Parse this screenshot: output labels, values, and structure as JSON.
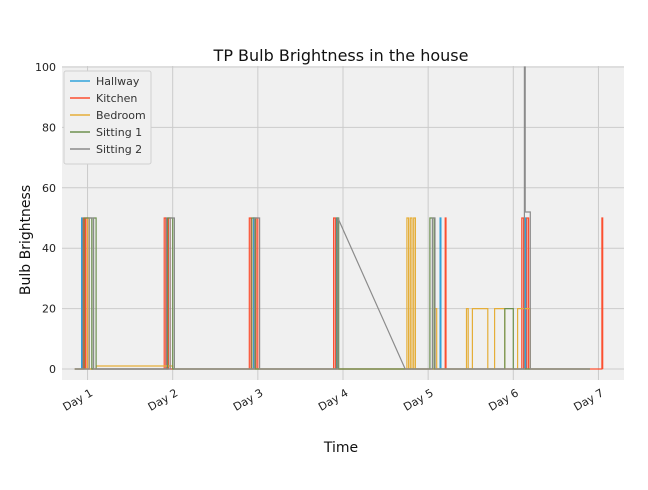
{
  "chart_data": {
    "type": "line",
    "title": "TP Bulb Brightness in the house",
    "xlabel": "Time",
    "ylabel": "Bulb Brightness",
    "ylim": [
      0,
      100
    ],
    "xlim": [
      0.7,
      7.3
    ],
    "grid": true,
    "legend_position": "top-left",
    "colors": {
      "background": "#f0f0f0",
      "grid": "#cbcbcb"
    },
    "x_ticks": [
      {
        "value": 1,
        "label": "Day 1"
      },
      {
        "value": 2,
        "label": "Day 2"
      },
      {
        "value": 3,
        "label": "Day 3"
      },
      {
        "value": 4,
        "label": "Day 4"
      },
      {
        "value": 5,
        "label": "Day 5"
      },
      {
        "value": 6,
        "label": "Day 6"
      },
      {
        "value": 7,
        "label": "Day 7"
      }
    ],
    "y_ticks": [
      0,
      20,
      40,
      60,
      80,
      100
    ],
    "series": [
      {
        "name": "Hallway",
        "color": "#30a2da",
        "points": [
          [
            0.85,
            0
          ],
          [
            0.93,
            0
          ],
          [
            0.93,
            50
          ],
          [
            0.94,
            50
          ],
          [
            0.94,
            0
          ],
          [
            1.92,
            0
          ],
          [
            1.92,
            50
          ],
          [
            1.93,
            50
          ],
          [
            1.93,
            0
          ],
          [
            2.95,
            0
          ],
          [
            2.95,
            50
          ],
          [
            2.96,
            50
          ],
          [
            2.96,
            0
          ],
          [
            3.92,
            0
          ],
          [
            3.92,
            50
          ],
          [
            3.93,
            50
          ],
          [
            3.93,
            0
          ],
          [
            5.14,
            0
          ],
          [
            5.14,
            50
          ],
          [
            5.15,
            50
          ],
          [
            5.15,
            0
          ],
          [
            6.14,
            0
          ],
          [
            6.14,
            50
          ],
          [
            6.15,
            50
          ],
          [
            6.15,
            0
          ],
          [
            6.9,
            0
          ]
        ]
      },
      {
        "name": "Kitchen",
        "color": "#fc4f30",
        "points": [
          [
            0.85,
            0
          ],
          [
            0.95,
            0
          ],
          [
            0.95,
            50
          ],
          [
            0.97,
            50
          ],
          [
            0.97,
            0
          ],
          [
            0.98,
            0
          ],
          [
            0.98,
            50
          ],
          [
            1.0,
            50
          ],
          [
            1.0,
            0
          ],
          [
            1.9,
            0
          ],
          [
            1.9,
            50
          ],
          [
            1.92,
            50
          ],
          [
            1.92,
            0
          ],
          [
            1.95,
            0
          ],
          [
            1.95,
            50
          ],
          [
            1.97,
            50
          ],
          [
            1.97,
            0
          ],
          [
            2.9,
            0
          ],
          [
            2.9,
            50
          ],
          [
            2.92,
            50
          ],
          [
            2.92,
            0
          ],
          [
            2.98,
            0
          ],
          [
            2.98,
            50
          ],
          [
            3.0,
            50
          ],
          [
            3.0,
            0
          ],
          [
            3.89,
            0
          ],
          [
            3.89,
            50
          ],
          [
            3.91,
            50
          ],
          [
            3.91,
            0
          ],
          [
            5.2,
            0
          ],
          [
            5.2,
            50
          ],
          [
            5.21,
            50
          ],
          [
            5.21,
            0
          ],
          [
            6.1,
            0
          ],
          [
            6.1,
            50
          ],
          [
            6.12,
            50
          ],
          [
            6.12,
            0
          ],
          [
            6.16,
            0
          ],
          [
            6.16,
            50
          ],
          [
            6.18,
            50
          ],
          [
            6.18,
            0
          ],
          [
            7.04,
            0
          ],
          [
            7.04,
            50
          ],
          [
            7.05,
            50
          ],
          [
            7.05,
            0
          ]
        ]
      },
      {
        "name": "Bedroom",
        "color": "#e5ae38",
        "points": [
          [
            0.85,
            0
          ],
          [
            1.0,
            0
          ],
          [
            1.0,
            50
          ],
          [
            1.02,
            50
          ],
          [
            1.02,
            0
          ],
          [
            1.1,
            0
          ],
          [
            1.1,
            1
          ],
          [
            2.0,
            1
          ],
          [
            2.0,
            0
          ],
          [
            2.05,
            0
          ],
          [
            4.75,
            0
          ],
          [
            4.75,
            50
          ],
          [
            4.77,
            50
          ],
          [
            4.77,
            0
          ],
          [
            4.79,
            0
          ],
          [
            4.79,
            50
          ],
          [
            4.81,
            50
          ],
          [
            4.81,
            0
          ],
          [
            4.83,
            0
          ],
          [
            4.83,
            50
          ],
          [
            4.85,
            50
          ],
          [
            4.85,
            0
          ],
          [
            5.08,
            0
          ],
          [
            5.08,
            20
          ],
          [
            5.1,
            20
          ],
          [
            5.1,
            0
          ],
          [
            5.45,
            0
          ],
          [
            5.45,
            20
          ],
          [
            5.47,
            20
          ],
          [
            5.47,
            0
          ],
          [
            5.52,
            0
          ],
          [
            5.52,
            20
          ],
          [
            5.7,
            20
          ],
          [
            5.7,
            0
          ],
          [
            5.78,
            0
          ],
          [
            5.78,
            20
          ],
          [
            5.9,
            20
          ],
          [
            5.9,
            0
          ],
          [
            6.05,
            0
          ],
          [
            6.05,
            20
          ],
          [
            6.2,
            20
          ],
          [
            6.2,
            0
          ],
          [
            6.9,
            0
          ]
        ]
      },
      {
        "name": "Sitting 1",
        "color": "#6d904f",
        "points": [
          [
            0.85,
            0
          ],
          [
            0.96,
            0
          ],
          [
            0.96,
            50
          ],
          [
            1.05,
            50
          ],
          [
            1.05,
            0
          ],
          [
            1.07,
            0
          ],
          [
            1.07,
            50
          ],
          [
            1.1,
            50
          ],
          [
            1.1,
            0
          ],
          [
            1.94,
            0
          ],
          [
            1.94,
            50
          ],
          [
            2.0,
            50
          ],
          [
            2.0,
            0
          ],
          [
            2.93,
            0
          ],
          [
            2.93,
            50
          ],
          [
            2.97,
            50
          ],
          [
            2.97,
            0
          ],
          [
            3.93,
            0
          ],
          [
            3.93,
            50
          ],
          [
            3.95,
            50
          ],
          [
            3.95,
            0
          ],
          [
            5.02,
            0
          ],
          [
            5.02,
            50
          ],
          [
            5.07,
            50
          ],
          [
            5.07,
            0
          ],
          [
            5.9,
            0
          ],
          [
            5.9,
            20
          ],
          [
            6.0,
            20
          ],
          [
            6.0,
            0
          ],
          [
            6.9,
            0
          ]
        ]
      },
      {
        "name": "Sitting 2",
        "color": "#8b8b8b",
        "points": [
          [
            0.85,
            0
          ],
          [
            1.02,
            0
          ],
          [
            1.02,
            50
          ],
          [
            1.07,
            50
          ],
          [
            1.07,
            0
          ],
          [
            1.97,
            0
          ],
          [
            1.97,
            50
          ],
          [
            2.02,
            50
          ],
          [
            2.02,
            0
          ],
          [
            2.96,
            0
          ],
          [
            2.96,
            50
          ],
          [
            3.02,
            50
          ],
          [
            3.02,
            0
          ],
          [
            3.94,
            0
          ],
          [
            3.94,
            50
          ],
          [
            4.73,
            0
          ],
          [
            5.05,
            0
          ],
          [
            5.05,
            50
          ],
          [
            5.08,
            50
          ],
          [
            5.08,
            0
          ],
          [
            6.13,
            0
          ],
          [
            6.13,
            100
          ],
          [
            6.14,
            100
          ],
          [
            6.14,
            52
          ],
          [
            6.2,
            52
          ],
          [
            6.2,
            0
          ],
          [
            6.9,
            0
          ]
        ]
      }
    ]
  }
}
